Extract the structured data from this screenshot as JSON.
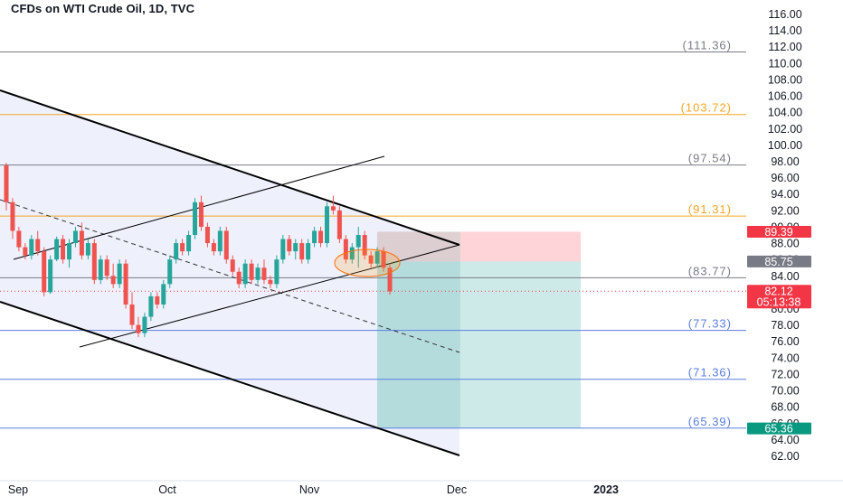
{
  "header": {
    "title": "CFDs on WTI Crude Oil, 1D, TVC"
  },
  "colors": {
    "up": "#26a69a",
    "down": "#ef5350",
    "channel_fill": "#eef0fc",
    "orange_level": "#f5a623",
    "gray_level": "#787b86",
    "blue_level": "#5b7ee0",
    "target_zone": "#b2dfdb",
    "stop_zone": "#ffcdd2",
    "price_badge": "#787b86",
    "last_badge": "#f23645",
    "low_badge": "#089981"
  },
  "chart_data": {
    "type": "candlestick",
    "y_ticks": [
      "62.00",
      "64.00",
      "66.00",
      "68.00",
      "70.00",
      "72.00",
      "74.00",
      "76.00",
      "78.00",
      "80.00",
      "82.00",
      "84.00",
      "86.00",
      "88.00",
      "90.00",
      "92.00",
      "94.00",
      "96.00",
      "98.00",
      "100.00",
      "102.00",
      "104.00",
      "106.00",
      "108.00",
      "110.00",
      "112.00",
      "114.00",
      "116.00"
    ],
    "x_ticks": [
      "Sep",
      "Oct",
      "Nov",
      "Dec",
      "2023"
    ],
    "ylim": [
      61,
      117.5
    ],
    "levels": [
      {
        "label": "(111.36)",
        "value": 111.36,
        "kind": "gray"
      },
      {
        "label": "(103.72)",
        "value": 103.72,
        "kind": "orange"
      },
      {
        "label": "(97.54)",
        "value": 97.54,
        "kind": "gray"
      },
      {
        "label": "(91.31)",
        "value": 91.31,
        "kind": "orange"
      },
      {
        "label": "(83.77)",
        "value": 83.77,
        "kind": "gray"
      },
      {
        "label": "(77.33)",
        "value": 77.33,
        "kind": "blue"
      },
      {
        "label": "(71.36)",
        "value": 71.36,
        "kind": "blue"
      },
      {
        "label": "(65.39)",
        "value": 65.39,
        "kind": "blue"
      }
    ],
    "badges": [
      {
        "text": "89.39",
        "value": 89.39,
        "kind": "stop"
      },
      {
        "text": "85.75",
        "value": 85.75,
        "kind": "entry"
      },
      {
        "text": "82.12",
        "text2": "05:13:38",
        "value": 82.12,
        "kind": "last"
      },
      {
        "text": "65.36",
        "value": 65.36,
        "kind": "target"
      }
    ],
    "candles": [
      [
        97.5,
        97.8,
        92.0,
        93.0
      ],
      [
        93.0,
        93.5,
        88.5,
        89.5
      ],
      [
        89.5,
        90.0,
        87.0,
        87.5
      ],
      [
        87.5,
        88.0,
        86.0,
        86.5
      ],
      [
        86.5,
        89.0,
        86.0,
        88.5
      ],
      [
        88.5,
        89.5,
        86.5,
        87.0
      ],
      [
        87.0,
        87.5,
        81.5,
        82.0
      ],
      [
        82.0,
        86.5,
        81.8,
        86.0
      ],
      [
        86.0,
        88.8,
        85.8,
        88.5
      ],
      [
        88.5,
        89.0,
        85.5,
        86.0
      ],
      [
        86.0,
        88.5,
        85.0,
        88.0
      ],
      [
        88.0,
        90.0,
        87.5,
        89.5
      ],
      [
        89.5,
        90.5,
        86.0,
        86.5
      ],
      [
        86.5,
        88.5,
        86.0,
        88.0
      ],
      [
        88.0,
        88.5,
        83.0,
        83.5
      ],
      [
        83.5,
        86.5,
        83.0,
        86.0
      ],
      [
        86.0,
        86.5,
        83.5,
        84.0
      ],
      [
        84.0,
        85.5,
        82.5,
        83.0
      ],
      [
        83.0,
        86.0,
        82.5,
        85.5
      ],
      [
        85.5,
        86.0,
        80.0,
        80.5
      ],
      [
        80.5,
        82.0,
        77.5,
        78.0
      ],
      [
        78.0,
        79.0,
        76.5,
        77.0
      ],
      [
        77.0,
        79.5,
        76.5,
        79.0
      ],
      [
        79.0,
        82.0,
        78.5,
        81.5
      ],
      [
        81.5,
        82.0,
        80.0,
        80.5
      ],
      [
        80.5,
        83.5,
        80.0,
        83.0
      ],
      [
        83.0,
        86.5,
        82.5,
        86.0
      ],
      [
        86.0,
        88.5,
        85.5,
        88.0
      ],
      [
        88.0,
        88.5,
        86.5,
        87.0
      ],
      [
        87.0,
        89.5,
        86.5,
        89.0
      ],
      [
        89.0,
        93.5,
        88.5,
        93.0
      ],
      [
        93.0,
        93.8,
        89.5,
        90.0
      ],
      [
        90.0,
        90.5,
        87.5,
        88.0
      ],
      [
        88.0,
        88.5,
        86.5,
        87.0
      ],
      [
        87.0,
        90.0,
        86.5,
        89.5
      ],
      [
        89.5,
        90.0,
        85.5,
        86.0
      ],
      [
        86.0,
        86.5,
        84.0,
        84.5
      ],
      [
        84.5,
        85.0,
        82.5,
        83.0
      ],
      [
        83.0,
        86.0,
        82.5,
        85.5
      ],
      [
        85.5,
        86.0,
        83.0,
        83.5
      ],
      [
        83.5,
        85.5,
        83.0,
        85.0
      ],
      [
        85.0,
        86.0,
        83.0,
        83.5
      ],
      [
        83.5,
        84.0,
        82.5,
        83.0
      ],
      [
        83.0,
        86.5,
        82.5,
        86.0
      ],
      [
        86.0,
        89.0,
        85.5,
        88.5
      ],
      [
        88.5,
        89.0,
        86.5,
        87.0
      ],
      [
        87.0,
        88.5,
        86.0,
        88.0
      ],
      [
        88.0,
        88.5,
        85.5,
        86.0
      ],
      [
        86.0,
        88.5,
        85.5,
        88.0
      ],
      [
        88.0,
        90.0,
        87.5,
        89.5
      ],
      [
        89.5,
        90.0,
        87.5,
        88.0
      ],
      [
        88.0,
        93.0,
        87.5,
        92.5
      ],
      [
        92.5,
        93.8,
        91.5,
        92.0
      ],
      [
        92.0,
        92.5,
        88.0,
        88.5
      ],
      [
        88.5,
        89.0,
        85.5,
        86.0
      ],
      [
        86.0,
        88.0,
        85.5,
        87.5
      ],
      [
        87.5,
        90.0,
        85.0,
        89.0
      ],
      [
        89.0,
        89.5,
        86.0,
        86.5
      ],
      [
        86.5,
        87.0,
        85.0,
        85.5
      ],
      [
        85.5,
        87.5,
        85.0,
        87.0
      ],
      [
        87.0,
        87.5,
        84.5,
        85.0
      ],
      [
        85.0,
        85.5,
        81.7,
        82.1
      ]
    ]
  }
}
